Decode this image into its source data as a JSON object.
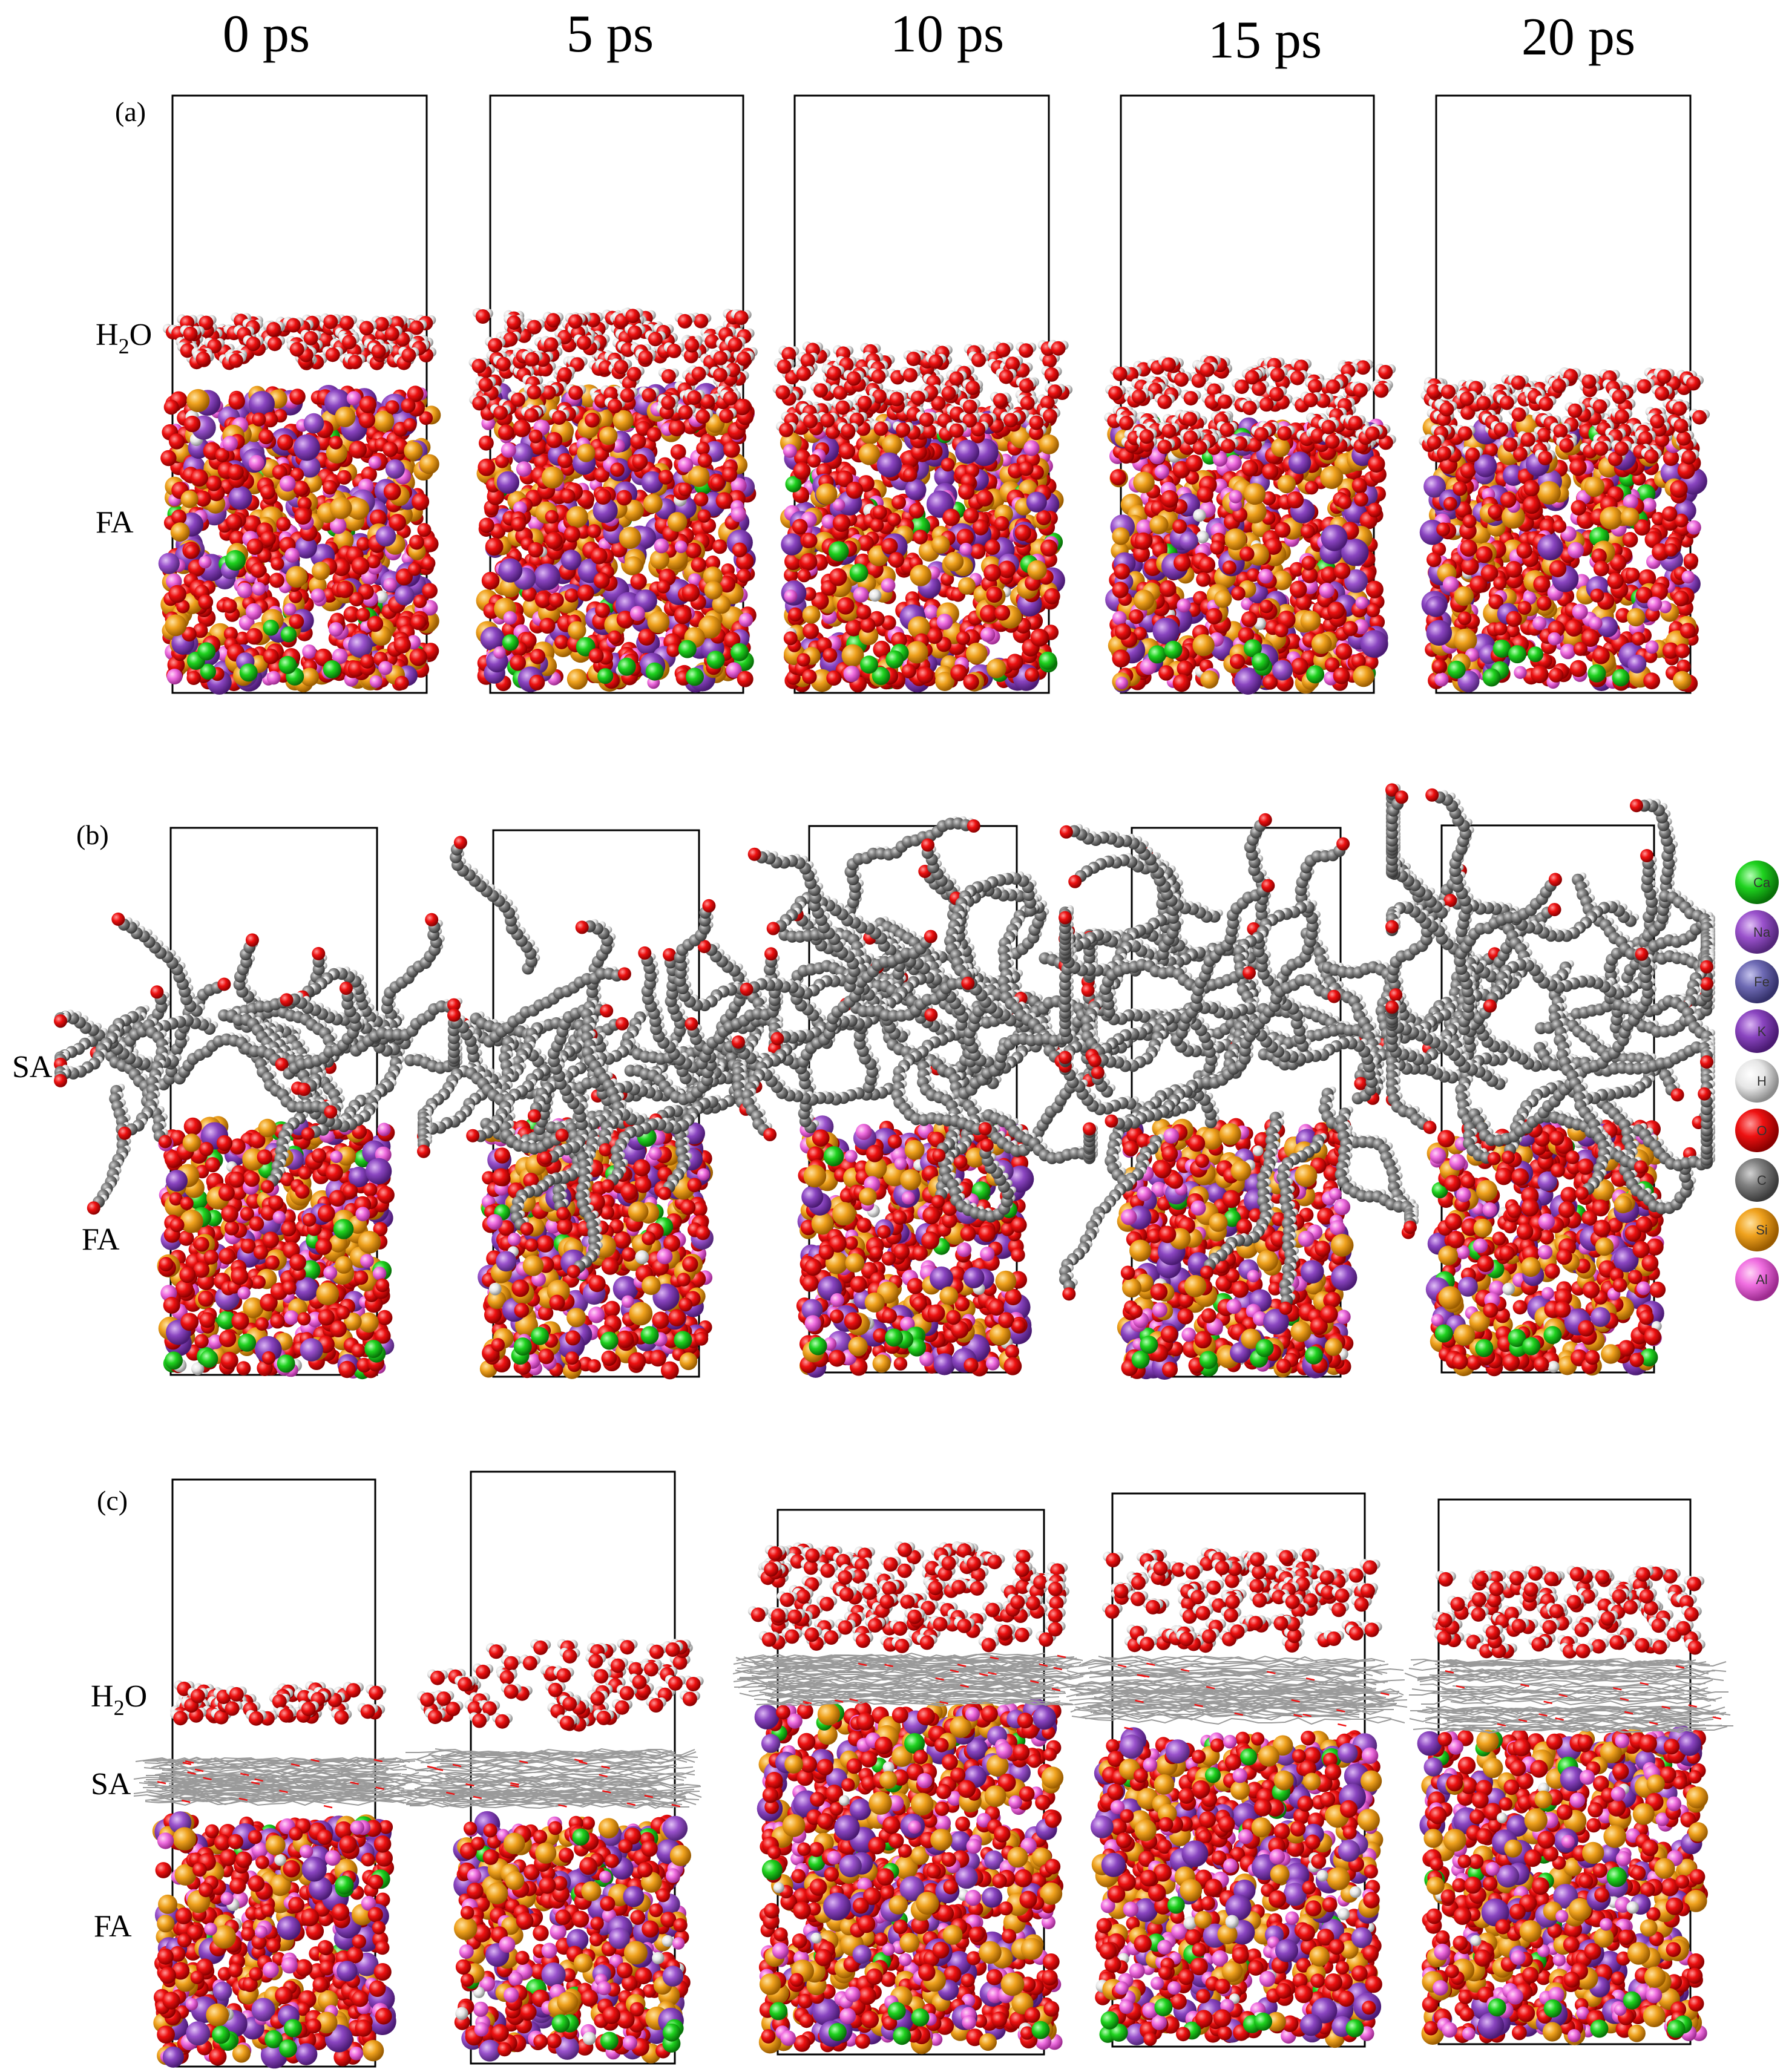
{
  "times": [
    "0 ps",
    "5 ps",
    "10 ps",
    "15 ps",
    "20 ps"
  ],
  "rows": [
    {
      "id": "a",
      "label": "(a)",
      "layers": [
        "H2O",
        "FA"
      ]
    },
    {
      "id": "b",
      "label": "(b)",
      "layers": [
        "SA",
        "FA"
      ]
    },
    {
      "id": "c",
      "label": "(c)",
      "layers": [
        "H2O",
        "SA",
        "FA"
      ]
    }
  ],
  "layer_labels": {
    "H2O_main": "H",
    "H2O_sub": "2",
    "H2O_tail": "O",
    "SA": "SA",
    "FA": "FA"
  },
  "legend": [
    {
      "symbol": "Ca",
      "color": "#1fd21f"
    },
    {
      "symbol": "Na",
      "color": "#9a52cc"
    },
    {
      "symbol": "Fe",
      "color": "#6e6ab4"
    },
    {
      "symbol": "K",
      "color": "#8a45c0"
    },
    {
      "symbol": "H",
      "color": "#eeeeee"
    },
    {
      "symbol": "O",
      "color": "#ee1111"
    },
    {
      "symbol": "C",
      "color": "#777777"
    },
    {
      "symbol": "Si",
      "color": "#f0a21e"
    },
    {
      "symbol": "Al",
      "color": "#f06ee0"
    }
  ]
}
